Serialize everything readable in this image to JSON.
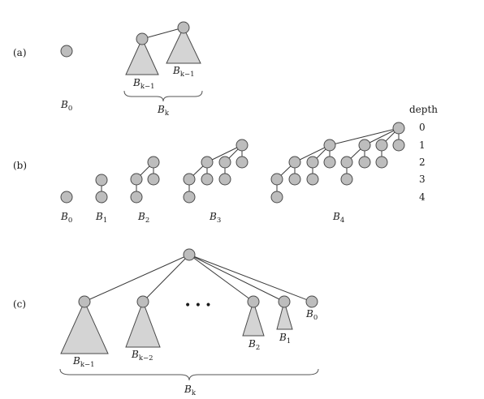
{
  "panels": {
    "a": "(a)",
    "b": "(b)",
    "c": "(c)"
  },
  "depth": {
    "title": "depth",
    "levels": [
      "0",
      "1",
      "2",
      "3",
      "4"
    ]
  },
  "labels": {
    "B": "B",
    "sub_0": "0",
    "sub_1": "1",
    "sub_2": "2",
    "sub_3": "3",
    "sub_4": "4",
    "sub_k": "k",
    "sub_k_minus_1": "k−1",
    "sub_k_minus_2": "k−2"
  },
  "ellipsis": "• • •"
}
